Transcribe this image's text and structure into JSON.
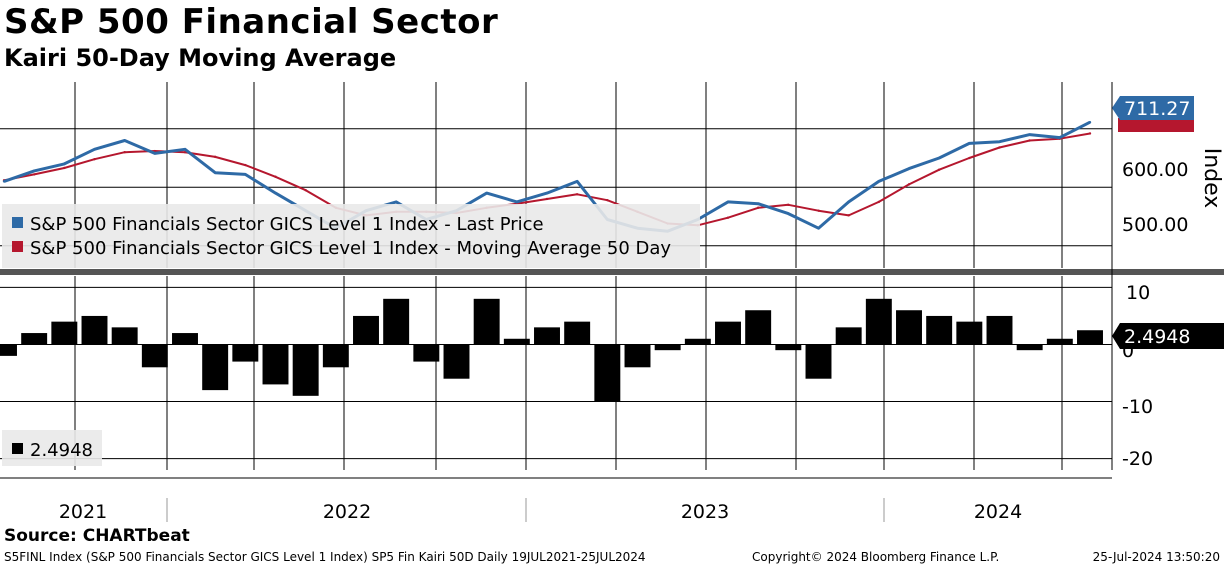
{
  "title": "S&P 500 Financial Sector",
  "subtitle": "Kairi 50-Day Moving Average",
  "source": "Source: CHARTbeat",
  "footer": {
    "left": "S5FINL Index (S&P 500 Financials Sector GICS Level 1 Index) SP5 Fin Kairi 50D  Daily 19JUL2021-25JUL2024",
    "center": "Copyright© 2024 Bloomberg Finance L.P.",
    "right": "25-Jul-2024 13:50:20"
  },
  "colors": {
    "price": "#2e6aa6",
    "ma": "#b5172e",
    "kairi": "#000000"
  },
  "chart_data": [
    {
      "type": "line",
      "ylabel": "Index",
      "ylim": [
        462,
        780
      ],
      "yticks": [
        "500.00",
        "600.00"
      ],
      "legend_position": "bottom-left",
      "x_labels": [
        "2021",
        "2022",
        "2023",
        "2024"
      ],
      "x": [
        "2021-07",
        "2021-08",
        "2021-09",
        "2021-10",
        "2021-11",
        "2021-12",
        "2022-01",
        "2022-02",
        "2022-03",
        "2022-04",
        "2022-05",
        "2022-06",
        "2022-07",
        "2022-08",
        "2022-09",
        "2022-10",
        "2022-11",
        "2022-12",
        "2023-01",
        "2023-02",
        "2023-03",
        "2023-04",
        "2023-05",
        "2023-06",
        "2023-07",
        "2023-08",
        "2023-09",
        "2023-10",
        "2023-11",
        "2023-12",
        "2024-01",
        "2024-02",
        "2024-03",
        "2024-04",
        "2024-05",
        "2024-06",
        "2024-07"
      ],
      "series": [
        {
          "name": "S&P 500 Financials Sector GICS Level 1 Index - Last Price",
          "last_label": "711.27",
          "values": [
            610,
            628,
            640,
            665,
            680,
            658,
            665,
            625,
            622,
            590,
            560,
            530,
            560,
            575,
            545,
            560,
            590,
            575,
            590,
            610,
            545,
            530,
            525,
            545,
            575,
            572,
            555,
            530,
            575,
            610,
            632,
            650,
            675,
            678,
            690,
            685,
            711.27
          ]
        },
        {
          "name": "S&P 500 Financials Sector GICS Level 1 Index - Moving Average 50 Day",
          "values": [
            612,
            622,
            633,
            648,
            660,
            662,
            660,
            652,
            638,
            618,
            595,
            565,
            552,
            558,
            558,
            556,
            565,
            572,
            580,
            588,
            578,
            558,
            538,
            535,
            548,
            565,
            570,
            560,
            552,
            575,
            605,
            630,
            650,
            668,
            680,
            683,
            692
          ]
        }
      ]
    },
    {
      "type": "bar",
      "ylim": [
        -22,
        12
      ],
      "yticks": [
        "10",
        "0",
        "-10",
        "-20"
      ],
      "legend_position": "bottom-left",
      "last_value": "2.4948",
      "x": [
        "2021-07",
        "2021-08",
        "2021-09",
        "2021-10",
        "2021-11",
        "2021-12",
        "2022-01",
        "2022-02",
        "2022-03",
        "2022-04",
        "2022-05",
        "2022-06",
        "2022-07",
        "2022-08",
        "2022-09",
        "2022-10",
        "2022-11",
        "2022-12",
        "2023-01",
        "2023-02",
        "2023-03",
        "2023-04",
        "2023-05",
        "2023-06",
        "2023-07",
        "2023-08",
        "2023-09",
        "2023-10",
        "2023-11",
        "2023-12",
        "2024-01",
        "2024-02",
        "2024-03",
        "2024-04",
        "2024-05",
        "2024-06",
        "2024-07"
      ],
      "series": [
        {
          "name": "2.4948",
          "values": [
            -2,
            2,
            4,
            5,
            3,
            -4,
            2,
            -8,
            -3,
            -7,
            -9,
            -4,
            5,
            8,
            -3,
            -6,
            8,
            1,
            3,
            4,
            -10,
            -4,
            -1,
            1,
            4,
            6,
            -1,
            -6,
            3,
            8,
            6,
            5,
            4,
            5,
            -1,
            1,
            2.4948
          ]
        }
      ]
    }
  ]
}
